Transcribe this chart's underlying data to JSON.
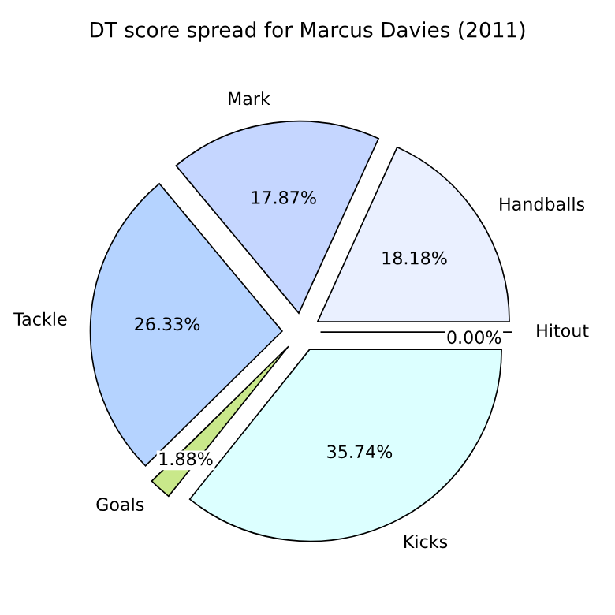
{
  "chart_data": {
    "type": "pie",
    "title": "DT score spread for Marcus Davies (2011)",
    "categories": [
      "Handballs",
      "Mark",
      "Tackle",
      "Goals",
      "Kicks",
      "Hitout"
    ],
    "values": [
      18.18,
      17.87,
      26.33,
      1.88,
      35.74,
      0.0
    ],
    "colors": [
      "#eaf0ff",
      "#c5d6ff",
      "#b5d3ff",
      "#c9e88a",
      "#dcffff",
      "#ffffff"
    ],
    "value_labels": [
      "18.18%",
      "17.87%",
      "26.33%",
      "1.88%",
      "35.74%",
      "0.00%"
    ]
  }
}
